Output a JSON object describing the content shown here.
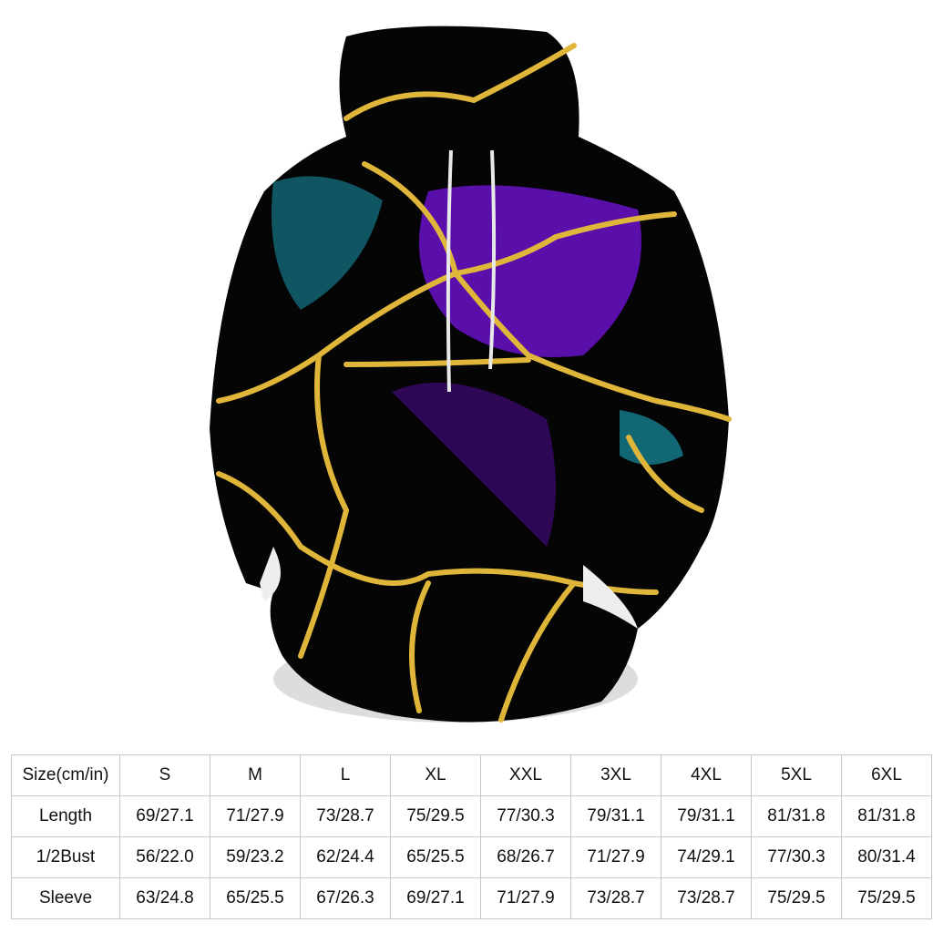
{
  "table": {
    "header": [
      "Size(cm/in)",
      "S",
      "M",
      "L",
      "XL",
      "XXL",
      "3XL",
      "4XL",
      "5XL",
      "6XL"
    ],
    "rows": [
      [
        "Length",
        "69/27.1",
        "71/27.9",
        "73/28.7",
        "75/29.5",
        "77/30.3",
        "79/31.1",
        "79/31.1",
        "81/31.8",
        "81/31.8"
      ],
      [
        "1/2Bust",
        "56/22.0",
        "59/23.2",
        "62/24.4",
        "65/25.5",
        "68/26.7",
        "71/27.9",
        "74/29.1",
        "77/30.3",
        "80/31.4"
      ],
      [
        "Sleeve",
        "63/24.8",
        "65/25.5",
        "67/26.3",
        "69/27.1",
        "71/27.9",
        "73/28.7",
        "73/28.7",
        "75/29.5",
        "75/29.5"
      ]
    ]
  }
}
